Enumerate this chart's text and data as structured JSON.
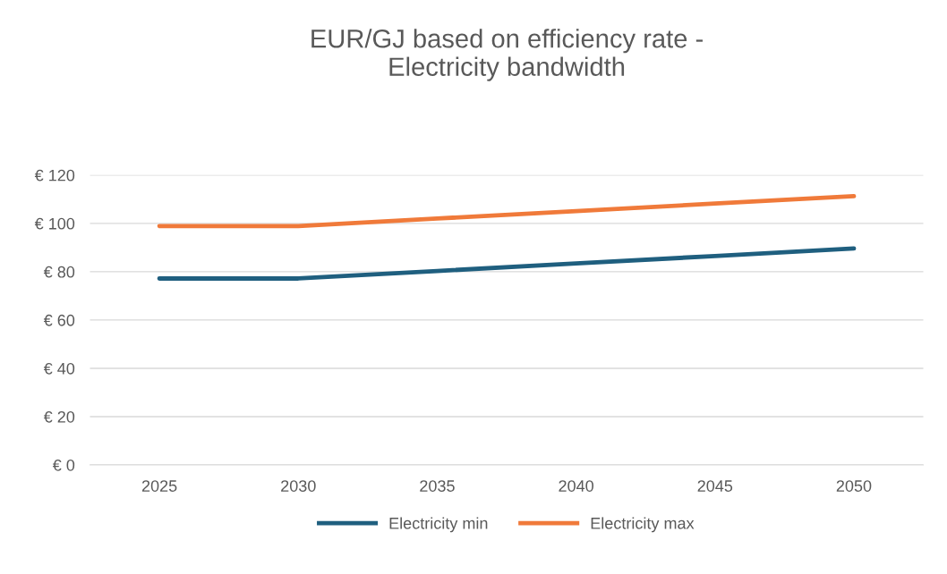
{
  "chart_data": {
    "type": "line",
    "title": "EUR/GJ based on efficiency rate -\nElectricity bandwidth",
    "categories": [
      "2025",
      "2030",
      "2035",
      "2040",
      "2045",
      "2050"
    ],
    "series": [
      {
        "name": "Electricity min",
        "color": "#1f5f7f",
        "values": [
          77.2,
          77.2,
          80.3,
          83.4,
          86.5,
          89.6
        ]
      },
      {
        "name": "Electricity max",
        "color": "#f07a3a",
        "values": [
          98.9,
          98.9,
          102.0,
          105.1,
          108.2,
          111.3
        ]
      }
    ],
    "ylim": [
      0,
      120
    ],
    "yticks": [
      {
        "value": 0,
        "label": "€ 0"
      },
      {
        "value": 20,
        "label": "€ 20"
      },
      {
        "value": 40,
        "label": "€ 40"
      },
      {
        "value": 60,
        "label": "€ 60"
      },
      {
        "value": 80,
        "label": "€ 80"
      },
      {
        "value": 100,
        "label": "€ 100"
      },
      {
        "value": 120,
        "label": "€ 120"
      }
    ],
    "grid": "y",
    "legend": "bottom",
    "marker": "none",
    "line_style": "solid"
  }
}
